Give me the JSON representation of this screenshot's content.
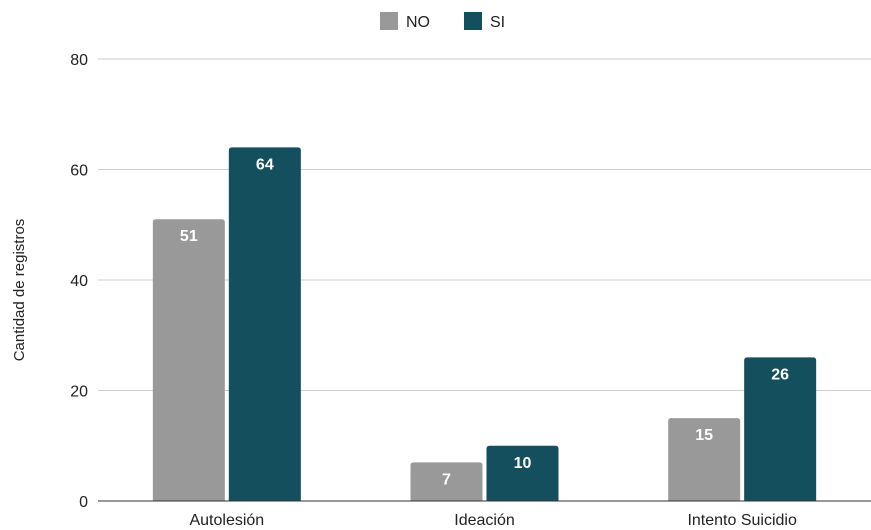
{
  "chart_data": {
    "type": "bar",
    "title": "",
    "xlabel": "",
    "ylabel": "Cantidad de registros",
    "categories": [
      "Autolesión",
      "Ideación",
      "Intento Suicidio"
    ],
    "series": [
      {
        "name": "NO",
        "values": [
          51,
          7,
          15
        ],
        "color": "#999999"
      },
      {
        "name": "SI",
        "values": [
          64,
          10,
          26
        ],
        "color": "#134f5c"
      }
    ],
    "ylim": [
      0,
      80
    ],
    "yticks": [
      0,
      20,
      40,
      60,
      80
    ],
    "grid": true,
    "legend_position": "top-center",
    "data_labels": true
  }
}
